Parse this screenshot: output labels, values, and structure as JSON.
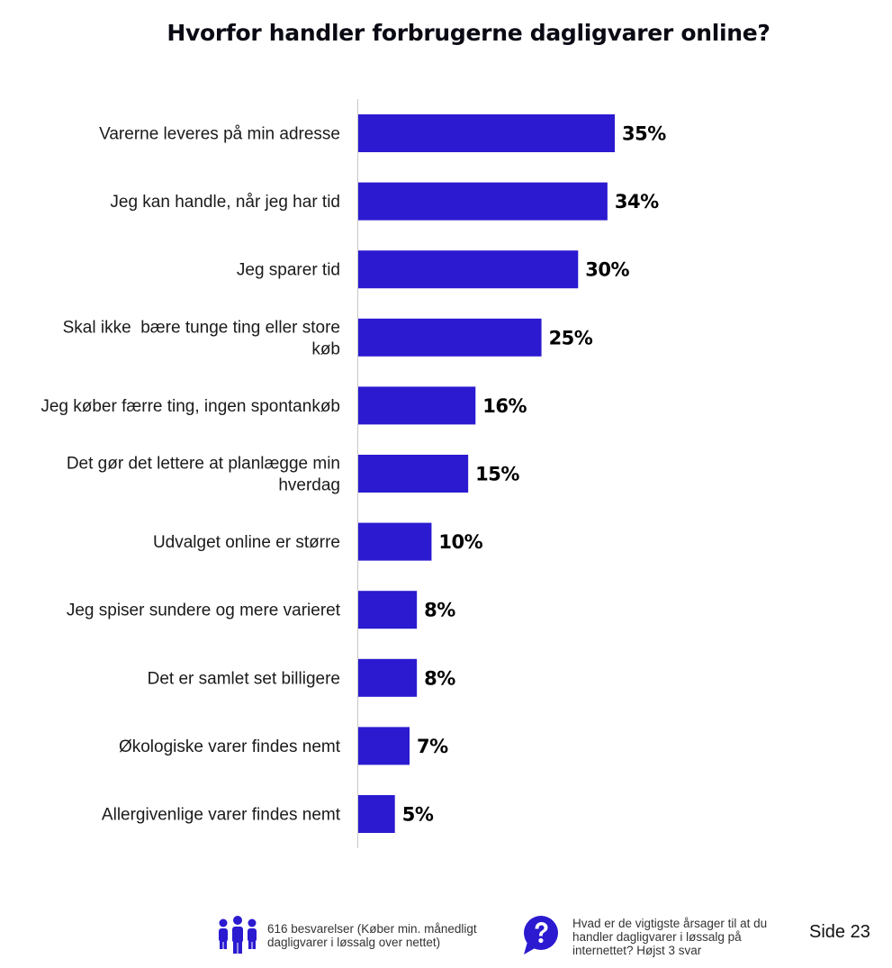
{
  "title": "Hvorfor handler forbrugerne dagligvarer online?",
  "chart_data": {
    "type": "bar",
    "orientation": "horizontal",
    "categories": [
      "Varerne leveres på min adresse",
      "Jeg kan handle, når jeg har tid",
      "Jeg sparer tid",
      "Skal ikke  bære tunge ting eller store køb",
      "Jeg køber færre ting, ingen spontankøb",
      "Det gør det lettere at planlægge min hverdag",
      "Udvalget online er større",
      "Jeg spiser sundere og mere varieret",
      "Det er samlet set billigere",
      "Økologiske varer findes nemt",
      "Allergivenlige varer findes nemt"
    ],
    "category_lines": [
      [
        "Varerne leveres på min adresse"
      ],
      [
        "Jeg kan handle, når jeg har tid"
      ],
      [
        "Jeg sparer tid"
      ],
      [
        "Skal ikke  bære tunge ting eller store",
        "køb"
      ],
      [
        "Jeg køber færre ting, ingen spontankøb"
      ],
      [
        "Det gør det lettere at planlægge min",
        "hverdag"
      ],
      [
        "Udvalget online er større"
      ],
      [
        "Jeg spiser sundere og mere varieret"
      ],
      [
        "Det er samlet set billigere"
      ],
      [
        "Økologiske varer findes nemt"
      ],
      [
        "Allergivenlige varer findes nemt"
      ]
    ],
    "values": [
      35,
      34,
      30,
      25,
      16,
      15,
      10,
      8,
      8,
      7,
      5
    ],
    "value_labels": [
      "35%",
      "34%",
      "30%",
      "25%",
      "16%",
      "15%",
      "10%",
      "8%",
      "8%",
      "7%",
      "5%"
    ],
    "bar_color": "#2b1ad0",
    "axis_color": "#c8c8c8",
    "grid": false,
    "legend": "none"
  },
  "footer": {
    "respondents_icon": "people-group-icon",
    "respondents_lines": [
      "616 besvarelser (Køber min. månedligt",
      "dagligvarer i løssalg over nettet)"
    ],
    "question_icon": "question-bubble-icon",
    "question_lines": [
      "Hvad er de vigtigste årsager til at du",
      "handler dagligvarer i løssalg på",
      "internettet? Højst 3 svar"
    ],
    "page_label": "Side 23",
    "icon_color": "#2b1ad0"
  }
}
